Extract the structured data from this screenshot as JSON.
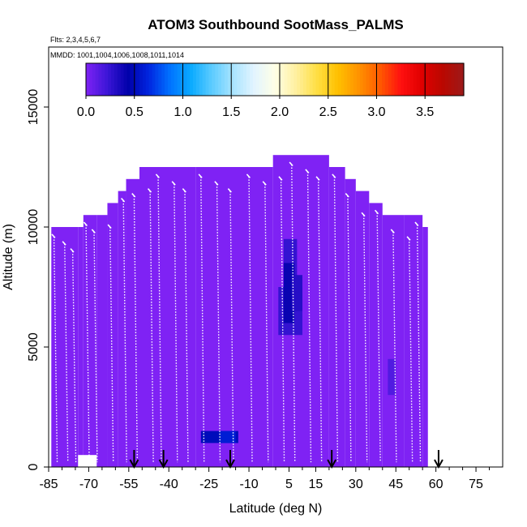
{
  "chart_data": {
    "type": "heatmap",
    "title": "ATOM3 Southbound SootMass_PALMS",
    "flights_label": "Flts: 2,3,4,5,6,7",
    "dates_label": "MMDD: 1001,1004,1006,1008,1011,1014",
    "xlabel": "Latitude (deg N)",
    "ylabel": "Altitude (m)",
    "xlim": [
      -85,
      85
    ],
    "ylim": [
      0,
      17500
    ],
    "x_ticks": [
      -85,
      -70,
      -55,
      -40,
      -25,
      -10,
      5,
      15,
      30,
      45,
      60,
      75
    ],
    "x_tick_labels": [
      "-85",
      "-70",
      "-55",
      "-40",
      "-25",
      "-10",
      "5",
      "15",
      "30",
      "45",
      "60",
      "75"
    ],
    "x_minor_ticks": [
      -80,
      -75,
      -65,
      -60,
      -50,
      -45,
      -35,
      -30,
      -20,
      -15,
      -5,
      0,
      10,
      20,
      25,
      35,
      40,
      50,
      55,
      65,
      70,
      80
    ],
    "y_ticks": [
      0,
      5000,
      10000,
      15000
    ],
    "y_tick_labels": [
      "0",
      "5000",
      "10000",
      "15000"
    ],
    "colorbar": {
      "min": 0,
      "max": 3.9,
      "ticks": [
        0.0,
        0.5,
        1.0,
        1.5,
        2.0,
        2.5,
        3.0,
        3.5
      ],
      "tick_labels": [
        "0.0",
        "0.5",
        "1.0",
        "1.5",
        "2.0",
        "2.5",
        "3.0",
        "3.5"
      ],
      "colors": [
        "#7f22f4",
        "#3d16d8",
        "#0000aa",
        "#0026e0",
        "#0072ff",
        "#0aaaff",
        "#5ccbff",
        "#a8e4ff",
        "#e2f4ff",
        "#ffffe6",
        "#fff0a0",
        "#ffdf44",
        "#ffc000",
        "#ff9200",
        "#ff5a00",
        "#ff1010",
        "#e00000",
        "#ba0800",
        "#9c1a1a"
      ]
    },
    "field_value_typical": 0.0,
    "coverage_columns": [
      {
        "lat": [
          -84,
          -74
        ],
        "alt": [
          0,
          10000
        ]
      },
      {
        "lat": [
          -74,
          -72
        ],
        "alt": [
          500,
          10000
        ]
      },
      {
        "lat": [
          -72,
          -67
        ],
        "alt": [
          500,
          10500
        ]
      },
      {
        "lat": [
          -67,
          -63
        ],
        "alt": [
          0,
          10500
        ]
      },
      {
        "lat": [
          -63,
          -59
        ],
        "alt": [
          0,
          11000
        ]
      },
      {
        "lat": [
          -59,
          -56
        ],
        "alt": [
          0,
          11500
        ]
      },
      {
        "lat": [
          -56,
          -51
        ],
        "alt": [
          0,
          12000
        ]
      },
      {
        "lat": [
          -51,
          -30
        ],
        "alt": [
          0,
          12500
        ]
      },
      {
        "lat": [
          -30,
          -1
        ],
        "alt": [
          0,
          12500
        ]
      },
      {
        "lat": [
          -1,
          20
        ],
        "alt": [
          0,
          13000
        ]
      },
      {
        "lat": [
          20,
          26
        ],
        "alt": [
          0,
          12500
        ]
      },
      {
        "lat": [
          26,
          30
        ],
        "alt": [
          0,
          12000
        ]
      },
      {
        "lat": [
          30,
          35
        ],
        "alt": [
          0,
          11500
        ]
      },
      {
        "lat": [
          35,
          40
        ],
        "alt": [
          0,
          11000
        ]
      },
      {
        "lat": [
          40,
          48
        ],
        "alt": [
          0,
          10500
        ]
      },
      {
        "lat": [
          48,
          55
        ],
        "alt": [
          0,
          10500
        ]
      },
      {
        "lat": [
          55,
          57
        ],
        "alt": [
          0,
          10000
        ]
      }
    ],
    "enhanced_regions": [
      {
        "lat": [
          -28,
          -14
        ],
        "alt": [
          1000,
          1500
        ],
        "value": 0.5
      },
      {
        "lat": [
          -21,
          -15
        ],
        "alt": [
          1000,
          1500
        ],
        "value": 0.6
      },
      {
        "lat": [
          1,
          10
        ],
        "alt": [
          5500,
          7500
        ],
        "value": 0.25
      },
      {
        "lat": [
          3,
          8
        ],
        "alt": [
          7500,
          9500
        ],
        "value": 0.25
      },
      {
        "lat": [
          3,
          7
        ],
        "alt": [
          6000,
          8500
        ],
        "value": 0.4
      },
      {
        "lat": [
          6,
          10
        ],
        "alt": [
          6500,
          8000
        ],
        "value": 0.3
      },
      {
        "lat": [
          42,
          45
        ],
        "alt": [
          3000,
          4500
        ],
        "value": 0.15
      }
    ],
    "flight_track_lats": [
      -83,
      -79,
      -76,
      -71,
      -68,
      -62,
      -57,
      -53,
      -47,
      -44,
      -38,
      -34,
      -28,
      -22,
      -17,
      -10,
      -4,
      2,
      6,
      12,
      16,
      22,
      27,
      33,
      38,
      44,
      50,
      53
    ],
    "arrow_markers_lat": [
      -53,
      -42,
      -17,
      21,
      61
    ]
  }
}
